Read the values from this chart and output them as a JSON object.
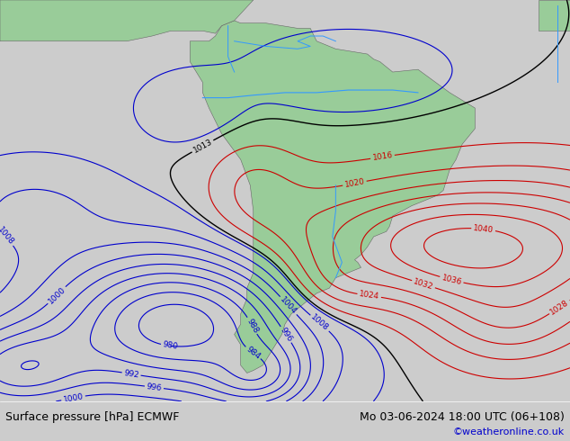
{
  "title_left": "Surface pressure [hPa] ECMWF",
  "title_right": "Mo 03-06-2024 18:00 UTC (06+108)",
  "copyright": "©weatheronline.co.uk",
  "bg_color": "#cccccc",
  "land_color": "#99cc99",
  "sea_color": "#cccccc",
  "contour_black_color": "#000000",
  "contour_red_color": "#cc0000",
  "contour_blue_color": "#0000cc",
  "font_size_title": 9,
  "font_size_copyright": 8,
  "figsize": [
    6.34,
    4.9
  ],
  "dpi": 100
}
